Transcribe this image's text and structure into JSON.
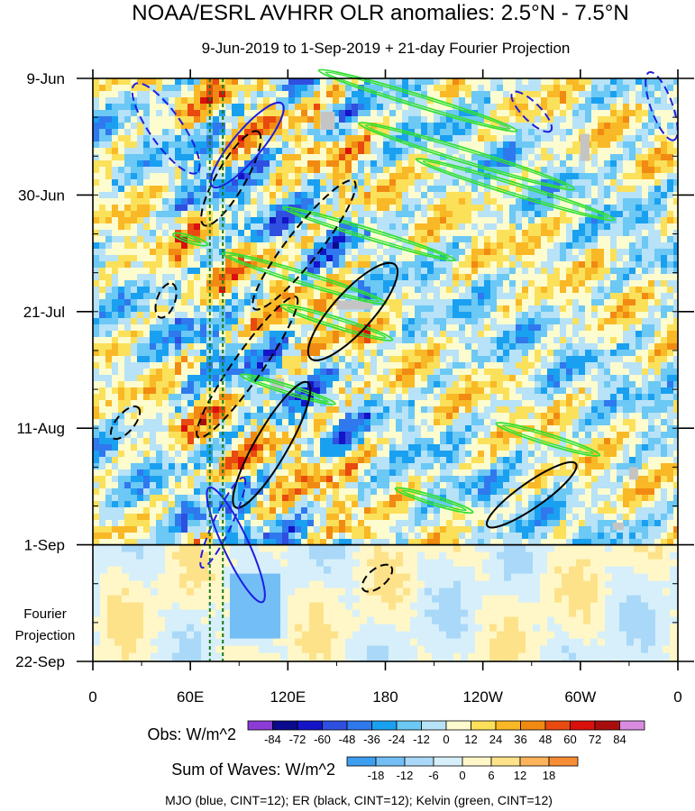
{
  "chart_data": {
    "type": "heatmap",
    "title": "NOAA/ESRL AVHRR OLR anomalies: 2.5°N - 7.5°N",
    "subtitle": "9-Jun-2019 to 1-Sep-2019 + 21-day Fourier Projection",
    "x_ticks": [
      "0",
      "60E",
      "120E",
      "180",
      "120W",
      "60W",
      "0"
    ],
    "x_tick_values": [
      0,
      60,
      120,
      180,
      240,
      300,
      360
    ],
    "y_ticks": [
      "9-Jun",
      "30-Jun",
      "21-Jul",
      "11-Aug",
      "1-Sep",
      "22-Sep"
    ],
    "y_tick_days": [
      0,
      21,
      42,
      63,
      84,
      105
    ],
    "xlim": [
      0,
      360
    ],
    "ylim_days": [
      0,
      105
    ],
    "projection_start_day": 84,
    "projection_label": [
      "Fourier",
      "Projection"
    ],
    "reference_longitudes": [
      72,
      80
    ],
    "obs_colorbar": {
      "label": "Obs: W/m^2",
      "ticks": [
        -84,
        -72,
        -60,
        -48,
        -36,
        -24,
        -12,
        0,
        12,
        24,
        36,
        48,
        60,
        72,
        84
      ],
      "colors": [
        "#8c3bd6",
        "#0a0a8c",
        "#1414c8",
        "#2f4fe0",
        "#2f78ee",
        "#1aa0f0",
        "#6cc8f4",
        "#b7e2f7",
        "#fdfccf",
        "#fbe05a",
        "#f9b826",
        "#f18a12",
        "#e84a0f",
        "#d9100c",
        "#a80e0e",
        "#d98be0"
      ]
    },
    "waves_colorbar": {
      "label": "Sum of Waves: W/m^2",
      "ticks": [
        -18,
        -12,
        -6,
        0,
        6,
        12,
        18
      ],
      "colors": [
        "#3e9ef0",
        "#73bef5",
        "#aad8f8",
        "#d6effb",
        "#fff7c7",
        "#fde28a",
        "#fcb45a",
        "#f68c34"
      ]
    },
    "series": [
      {
        "name": "MJO",
        "color": "#1e1ee0"
      },
      {
        "name": "ER",
        "color": "#000000"
      },
      {
        "name": "Kelvin",
        "color": "#33e033"
      }
    ],
    "footer": "MJO (blue, CINT=12); ER (black, CINT=12); Kelvin (green, CINT=12)"
  }
}
